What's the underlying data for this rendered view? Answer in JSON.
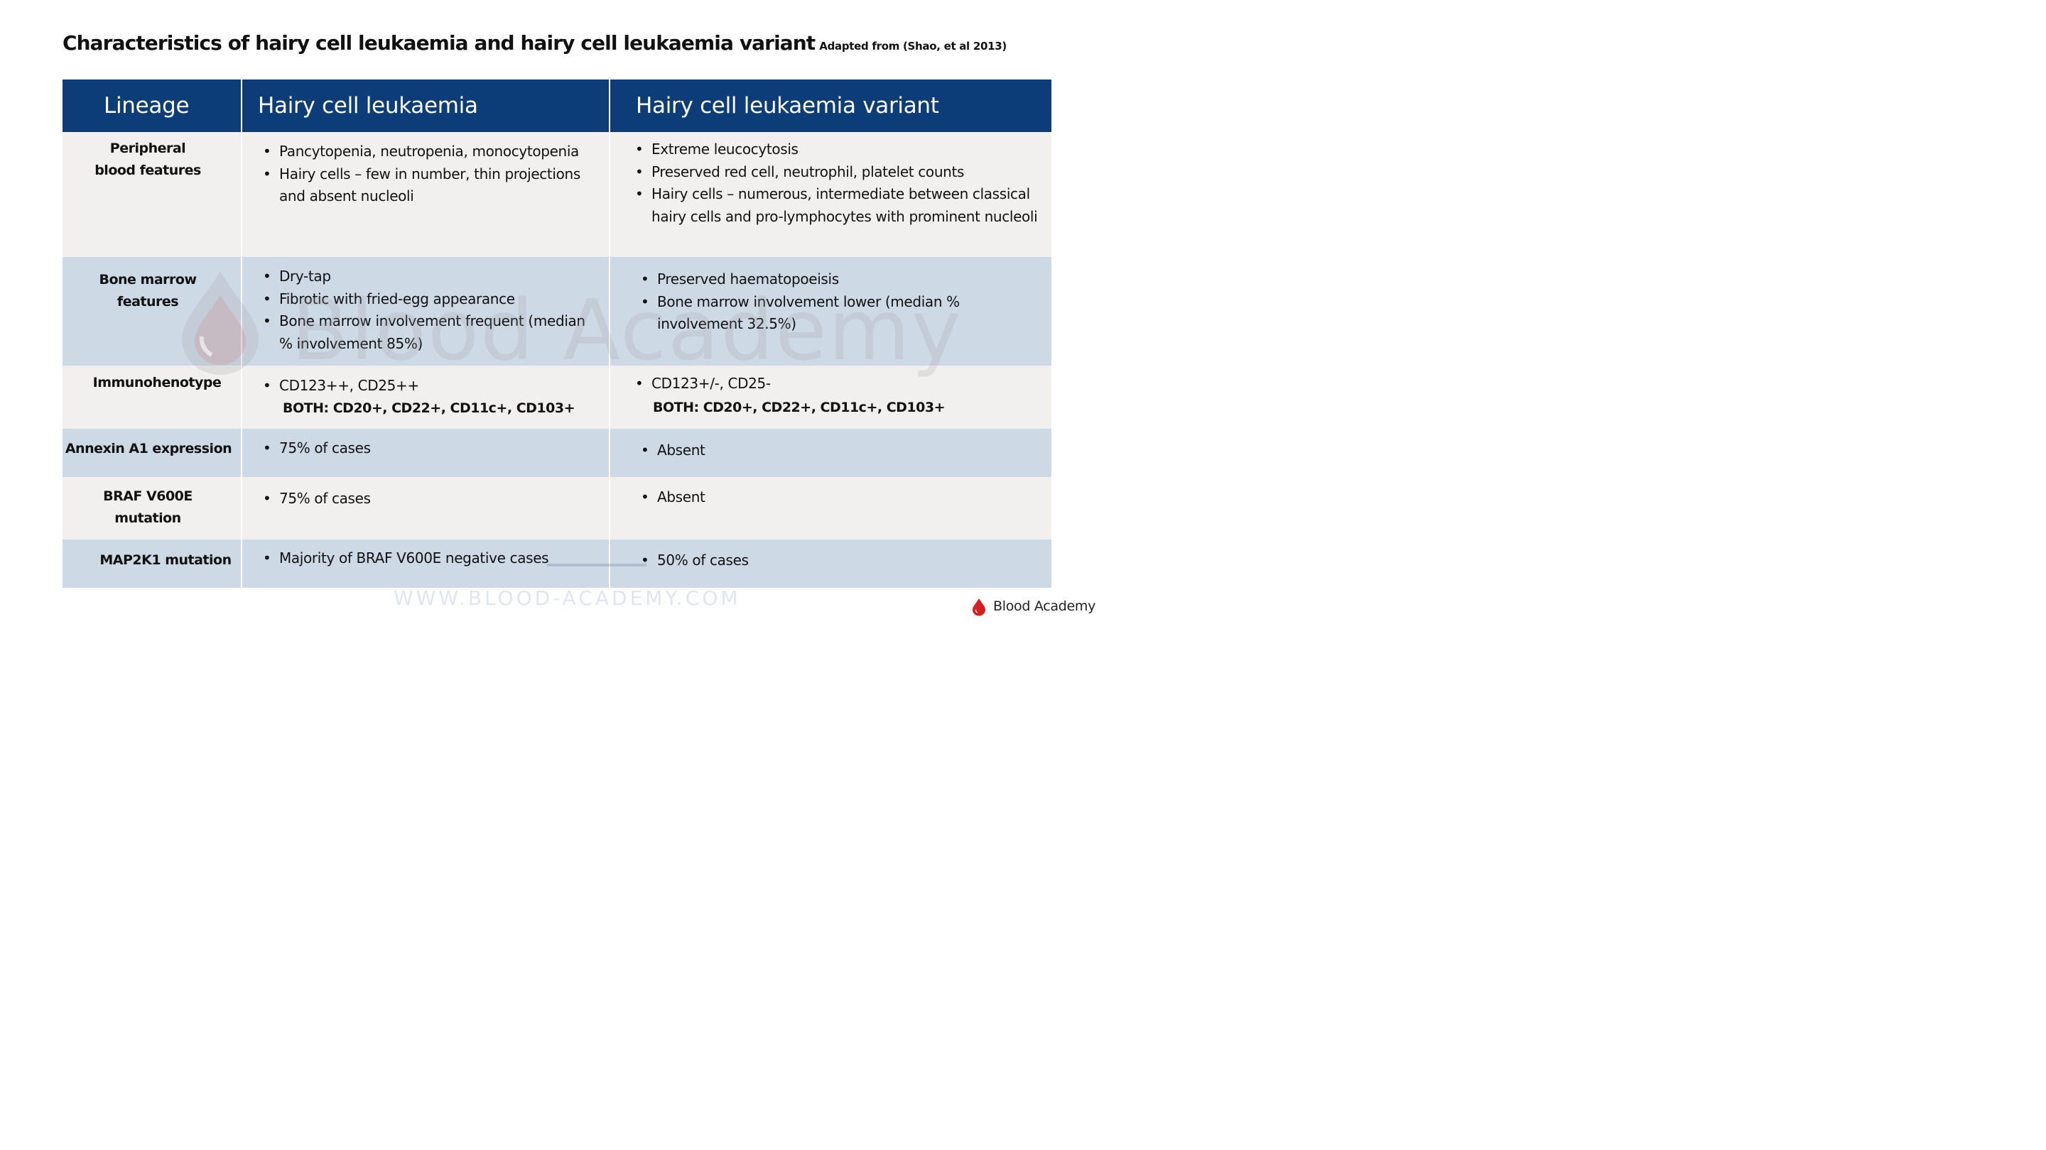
{
  "title": {
    "main": "Characteristics of hairy cell leukaemia and hairy cell leukaemia variant",
    "source": "Adapted from (Shao, et al 2013)"
  },
  "table": {
    "headers": [
      "Lineage",
      "Hairy cell leukaemia",
      "Hairy cell leukaemia variant"
    ],
    "rows": [
      {
        "label": "Peripheral blood features",
        "hcl": [
          "Pancytopenia, neutropenia, monocytopenia",
          "Hairy cells – few in number, thin projections and absent nucleoli"
        ],
        "hclv": [
          "Extreme leucocytosis",
          "Preserved red cell, neutrophil, platelet counts",
          "Hairy cells – numerous, intermediate between classical hairy cells and pro-lymphocytes with prominent nucleoli"
        ]
      },
      {
        "label": "Bone marrow features",
        "hcl": [
          "Dry-tap",
          "Fibrotic with fried-egg appearance",
          "Bone marrow involvement frequent (median % involvement 85%)"
        ],
        "hclv": [
          "Preserved haematopoeisis",
          "Bone marrow involvement lower (median % involvement 32.5%)"
        ]
      },
      {
        "label": "Immunohenotype",
        "hcl": [
          "CD123++, CD25++"
        ],
        "hcl_both": "BOTH: CD20+, CD22+, CD11c+, CD103+",
        "hclv": [
          "CD123+/-, CD25-"
        ],
        "hclv_both": "BOTH: CD20+, CD22+, CD11c+, CD103+"
      },
      {
        "label": "Annexin A1 expression",
        "hcl": [
          "75% of cases"
        ],
        "hclv": [
          "Absent"
        ]
      },
      {
        "label": "BRAF V600E mutation",
        "hcl": [
          "75% of cases"
        ],
        "hclv": [
          "Absent"
        ]
      },
      {
        "label": "MAP2K1 mutation",
        "hcl": [
          "Majority of BRAF V600E negative cases"
        ],
        "hclv": [
          "50% of cases"
        ]
      }
    ]
  },
  "watermark": {
    "text": "Blood Academy"
  },
  "footer": {
    "url": "WWW.BLOOD-ACADEMY.COM",
    "brand": "Blood Academy"
  },
  "colors": {
    "header_bg": "#0c3d78",
    "row_light": "#f1f0ef",
    "row_blue": "#cdd9e5",
    "brand_red": "#d61e1e"
  },
  "icons": {
    "watermark_drop": "blood-drop-icon",
    "brand_drop": "blood-drop-icon"
  }
}
